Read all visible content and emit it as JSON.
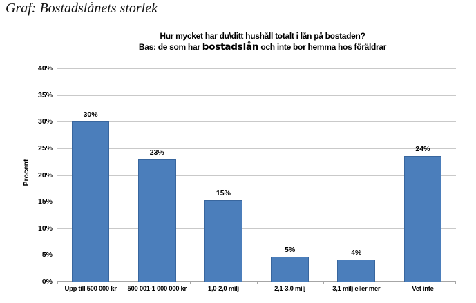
{
  "page": {
    "title": "Graf: Bostadslånets storlek"
  },
  "chart_data": {
    "type": "bar",
    "title": "Hur mycket har du\\ditt hushåll totalt i lån på bostaden?",
    "subtitle_prefix": "Bas: de som har ",
    "subtitle_emphasis": "bostadslån",
    "subtitle_suffix": " och inte bor hemma hos föräldrar",
    "categories": [
      "Upp till 500 000 kr",
      "500 001-1 000 000 kr",
      "1,0-2,0 milj",
      "2,1-3,0 milj",
      "3,1 milj eller mer",
      "Vet inte"
    ],
    "values": [
      30,
      23,
      15,
      5,
      4,
      24
    ],
    "value_labels": [
      "30%",
      "23%",
      "15%",
      "5%",
      "4%",
      "24%"
    ],
    "values_precise": [
      30,
      22.9,
      15.3,
      4.6,
      4.1,
      23.5
    ],
    "xlabel": "",
    "ylabel": "Procent",
    "ylim": [
      0,
      40
    ],
    "ytick_step": 5,
    "yticks": [
      "0%",
      "5%",
      "10%",
      "15%",
      "20%",
      "25%",
      "30%",
      "35%",
      "40%"
    ],
    "grid": true,
    "legend": "none",
    "bar_color": "#4B7EBB",
    "bar_border_color": "#38669E",
    "gridline_color": "#C9C9C9",
    "axis_color": "#A6A6A6"
  }
}
